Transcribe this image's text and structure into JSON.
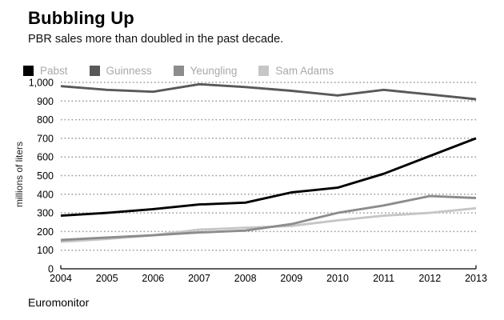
{
  "header": {
    "title": "Bubbling Up",
    "subtitle": "PBR sales more than doubled in the past decade."
  },
  "source_label": "Euromonitor",
  "chart_data": {
    "type": "line",
    "title": "Bubbling Up",
    "subtitle": "PBR sales more than doubled in the past decade.",
    "x_labels": [
      "2004",
      "2005",
      "2006",
      "2007",
      "2008",
      "2009",
      "2010",
      "2011",
      "2012",
      "2013"
    ],
    "series": [
      {
        "name": "Pabst",
        "color": "#000000",
        "values": [
          285,
          300,
          320,
          345,
          355,
          410,
          435,
          510,
          605,
          700
        ]
      },
      {
        "name": "Guinness",
        "color": "#595959",
        "values": [
          980,
          960,
          950,
          990,
          975,
          955,
          930,
          960,
          935,
          910
        ]
      },
      {
        "name": "Yeungling",
        "color": "#8c8c8c",
        "values": [
          155,
          168,
          180,
          195,
          205,
          240,
          300,
          340,
          390,
          380
        ]
      },
      {
        "name": "Sam Adams",
        "color": "#c6c6c6",
        "values": [
          145,
          160,
          180,
          210,
          220,
          230,
          260,
          285,
          300,
          325
        ]
      }
    ],
    "xlabel": "",
    "ylabel": "millions of liters",
    "ylim": [
      0,
      1000
    ],
    "yticks": {
      "values": [
        0,
        100,
        200,
        300,
        400,
        500,
        600,
        700,
        800,
        900,
        1000
      ],
      "labels": [
        "0",
        "100",
        "200",
        "300",
        "400",
        "500",
        "600",
        "700",
        "800",
        "900",
        "1,000"
      ]
    },
    "grid": "horizontal-dotted",
    "legend_position": "top-left",
    "colors": {
      "grid": "#9a9a9a",
      "axis": "#000000",
      "tick_text": "#000000",
      "legend_text": "#a9a9a9"
    }
  }
}
